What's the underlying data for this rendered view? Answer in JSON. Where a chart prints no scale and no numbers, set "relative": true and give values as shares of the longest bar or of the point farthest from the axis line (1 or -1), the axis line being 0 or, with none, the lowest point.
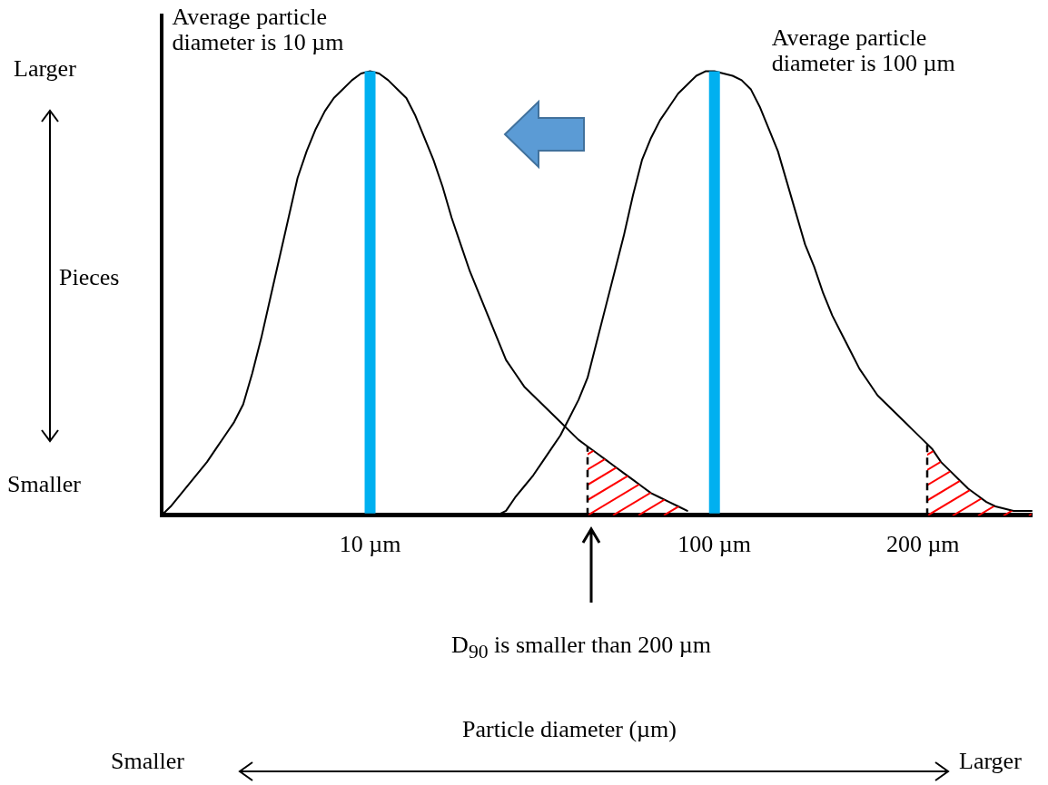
{
  "chart_data": {
    "type": "line",
    "relative": true,
    "ylabel": "Pieces",
    "categories": [
      null,
      null,
      null,
      null,
      null,
      null,
      null,
      null,
      null,
      null,
      null,
      null,
      null,
      null,
      null,
      null,
      null,
      null,
      null,
      null,
      null,
      null,
      null,
      "10 µm",
      null,
      null,
      null,
      null,
      null,
      null,
      null,
      null,
      null,
      null,
      null,
      null,
      null,
      null,
      null,
      null,
      null,
      null,
      null,
      null,
      null,
      null,
      null,
      null,
      null,
      null,
      null,
      null,
      null,
      null,
      null,
      null,
      null,
      null,
      null,
      null,
      null,
      "100 µm",
      null,
      null,
      null,
      null,
      null,
      null,
      null,
      null,
      null,
      null,
      null,
      null,
      null,
      null,
      null,
      null,
      null,
      null,
      null,
      null,
      null,
      null,
      "200 µm",
      null,
      null,
      null,
      null,
      null,
      null,
      null,
      null,
      null,
      null,
      null,
      null
    ],
    "series": [
      {
        "color": "#000000",
        "values": [
          0,
          0.02,
          0.045,
          0.07,
          0.095,
          0.12,
          0.15,
          0.18,
          0.21,
          0.25,
          0.32,
          0.4,
          0.49,
          0.58,
          0.67,
          0.76,
          0.82,
          0.87,
          0.91,
          0.94,
          0.96,
          0.98,
          0.995,
          1,
          0.995,
          0.98,
          0.96,
          0.94,
          0.9,
          0.85,
          0.8,
          0.74,
          0.67,
          0.61,
          0.55,
          0.5,
          0.45,
          0.4,
          0.35,
          0.32,
          0.29,
          0.27,
          0.25,
          0.23,
          0.21,
          0.19,
          0.17,
          0.155,
          0.14,
          0.125,
          0.11,
          0.095,
          0.08,
          0.065,
          0.05,
          0.04,
          0.03,
          0.02,
          0.01,
          null,
          null,
          null,
          null,
          null,
          null,
          null,
          null,
          null,
          null,
          null,
          null,
          null,
          null,
          null,
          null,
          null,
          null,
          null,
          null,
          null,
          null,
          null,
          null,
          null,
          null,
          null,
          null,
          null,
          null,
          null,
          null,
          null,
          null,
          null,
          null,
          null,
          null
        ]
      },
      {
        "color": "#000000",
        "values": [
          null,
          null,
          null,
          null,
          null,
          null,
          null,
          null,
          null,
          null,
          null,
          null,
          null,
          null,
          null,
          null,
          null,
          null,
          null,
          null,
          null,
          null,
          null,
          null,
          null,
          null,
          null,
          null,
          null,
          null,
          null,
          null,
          null,
          null,
          null,
          null,
          null,
          0,
          0.01,
          0.04,
          0.065,
          0.09,
          0.12,
          0.15,
          0.18,
          0.22,
          0.26,
          0.31,
          0.39,
          0.47,
          0.55,
          0.63,
          0.72,
          0.8,
          0.85,
          0.89,
          0.92,
          0.95,
          0.97,
          0.99,
          1,
          1,
          0.995,
          0.99,
          0.98,
          0.96,
          0.92,
          0.87,
          0.82,
          0.75,
          0.68,
          0.61,
          0.56,
          0.5,
          0.45,
          0.41,
          0.37,
          0.33,
          0.3,
          0.27,
          0.25,
          0.23,
          0.21,
          0.19,
          0.17,
          0.15,
          0.12,
          0.1,
          0.08,
          0.06,
          0.045,
          0.03,
          0.02,
          0.015,
          0.01,
          0.01,
          0.01
        ]
      }
    ],
    "ref_lines": [
      {
        "axis": "x",
        "value": "10 µm",
        "label": "Average particle diameter is 10 µm",
        "color": "#00b0f0"
      },
      {
        "axis": "x",
        "value": "100 µm",
        "label": "Average particle diameter is 100 µm",
        "color": "#00b0f0"
      }
    ],
    "annotations": [
      "D$_{90}$ is smaller than 200 µm",
      "Larger",
      "Smaller",
      "Smaller",
      "Larger",
      "Particle diameter (µm)"
    ],
    "grid": false,
    "legend": false,
    "marker": "none",
    "line_style": "solid"
  }
}
